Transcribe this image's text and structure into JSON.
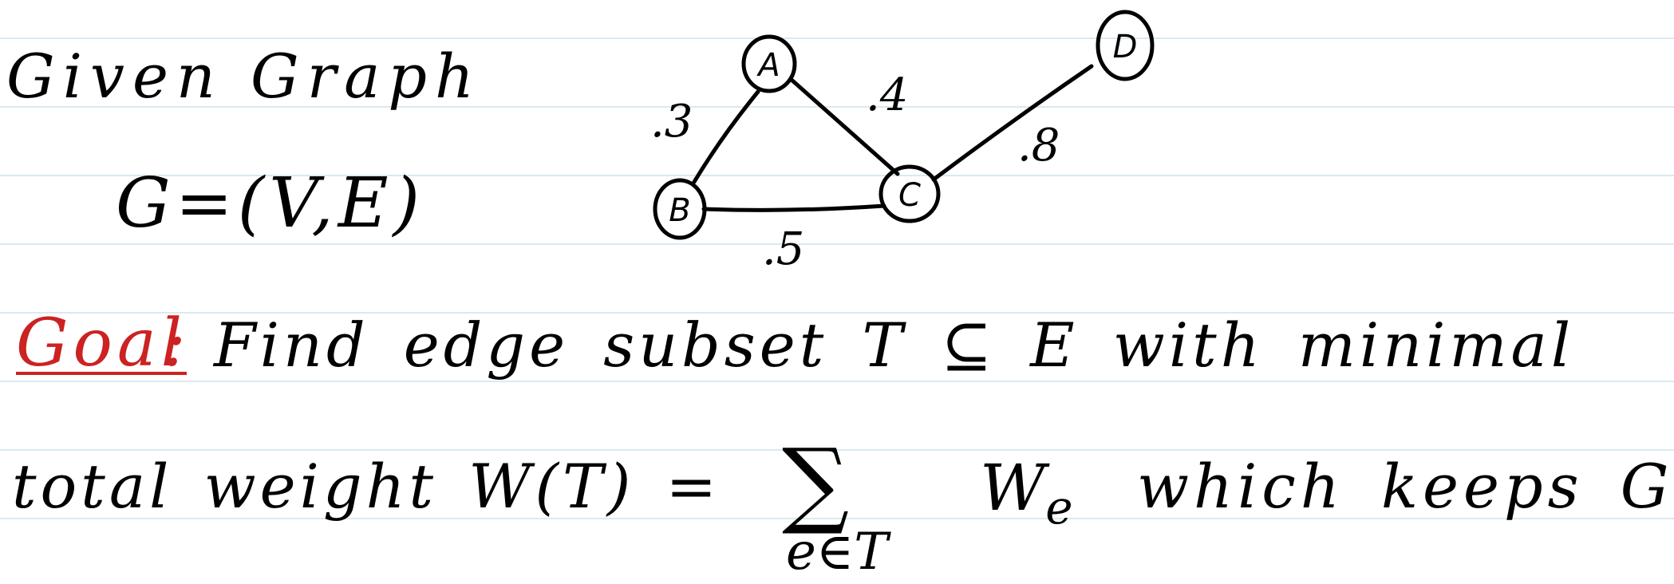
{
  "colors": {
    "ink": "#000000",
    "accent": "#cc2222",
    "rule": "#dbe9f1",
    "paper": "#ffffff"
  },
  "heading": {
    "line1": "Given Graph",
    "line2": "G=(V,E)"
  },
  "graph": {
    "nodes": [
      "A",
      "B",
      "C",
      "D"
    ],
    "edges": [
      {
        "from": "A",
        "to": "B",
        "weight": ".3"
      },
      {
        "from": "A",
        "to": "C",
        "weight": ".4"
      },
      {
        "from": "C",
        "to": "D",
        "weight": ".8"
      },
      {
        "from": "B",
        "to": "C",
        "weight": ".5"
      }
    ]
  },
  "goal": {
    "label": "Goal",
    "colon": ":",
    "text": "Find edge subset  T ⊆ E  with minimal"
  },
  "line4": {
    "prefix": "total weight  W(T) =",
    "sum_symbol": "∑",
    "sum_subscript": "e∈T",
    "term_base": "W",
    "term_sub": "e",
    "suffix": "which keeps G"
  }
}
